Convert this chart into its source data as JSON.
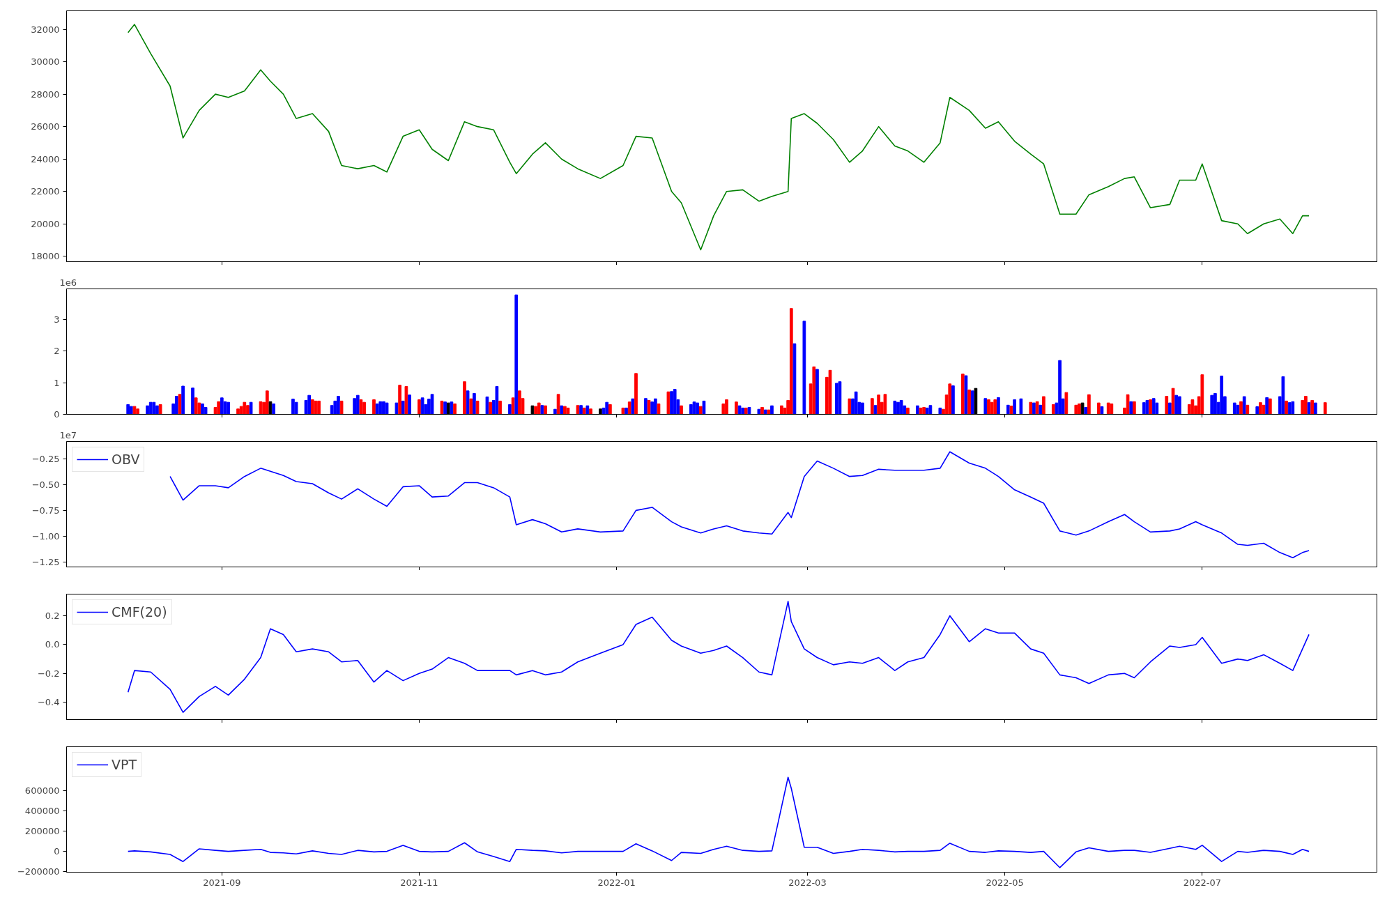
{
  "chart_data": [
    {
      "type": "line",
      "xlim": [
        "2021-07-15",
        "2022-08-24"
      ],
      "ylim": [
        17670,
        33140
      ],
      "xticks": [
        "2021-09",
        "2021-11",
        "2022-01",
        "2022-03",
        "2022-05",
        "2022-07"
      ],
      "yticks": [
        18000,
        20000,
        22000,
        24000,
        26000,
        28000,
        30000,
        32000
      ],
      "tick_labels": "y",
      "x": [
        "2021-08-03",
        "2021-08-05",
        "2021-08-10",
        "2021-08-16",
        "2021-08-20",
        "2021-08-25",
        "2021-08-30",
        "2021-09-03",
        "2021-09-08",
        "2021-09-13",
        "2021-09-16",
        "2021-09-20",
        "2021-09-24",
        "2021-09-29",
        "2021-10-04",
        "2021-10-08",
        "2021-10-13",
        "2021-10-18",
        "2021-10-22",
        "2021-10-27",
        "2021-11-01",
        "2021-11-05",
        "2021-11-10",
        "2021-11-15",
        "2021-11-19",
        "2021-11-24",
        "2021-11-29",
        "2021-12-01",
        "2021-12-06",
        "2021-12-10",
        "2021-12-15",
        "2021-12-20",
        "2021-12-27",
        "2022-01-03",
        "2022-01-07",
        "2022-01-12",
        "2022-01-18",
        "2022-01-21",
        "2022-01-27",
        "2022-01-31",
        "2022-02-04",
        "2022-02-09",
        "2022-02-14",
        "2022-02-18",
        "2022-02-23",
        "2022-02-24",
        "2022-02-28",
        "2022-03-04",
        "2022-03-09",
        "2022-03-14",
        "2022-03-18",
        "2022-03-23",
        "2022-03-28",
        "2022-04-01",
        "2022-04-06",
        "2022-04-11",
        "2022-04-14",
        "2022-04-20",
        "2022-04-25",
        "2022-04-29",
        "2022-05-04",
        "2022-05-09",
        "2022-05-13",
        "2022-05-18",
        "2022-05-23",
        "2022-05-27",
        "2022-06-02",
        "2022-06-07",
        "2022-06-10",
        "2022-06-15",
        "2022-06-21",
        "2022-06-24",
        "2022-06-29",
        "2022-07-01",
        "2022-07-07",
        "2022-07-12",
        "2022-07-15",
        "2022-07-20",
        "2022-07-25",
        "2022-07-29",
        "2022-08-01",
        "2022-08-03"
      ],
      "series": [
        {
          "color": "#008000",
          "values": [
            31800,
            32300,
            30500,
            28500,
            25300,
            27000,
            28000,
            27800,
            28200,
            29500,
            28800,
            28000,
            26500,
            26800,
            25700,
            23600,
            23400,
            23600,
            23200,
            25400,
            25800,
            24600,
            23900,
            26300,
            26000,
            25800,
            23800,
            23100,
            24300,
            25000,
            24000,
            23400,
            22800,
            23600,
            25400,
            25300,
            22000,
            21300,
            18400,
            20500,
            22000,
            22100,
            21400,
            21700,
            22000,
            26500,
            26800,
            26200,
            25200,
            23800,
            24500,
            26000,
            24800,
            24500,
            23800,
            25000,
            27800,
            27000,
            25900,
            26300,
            25100,
            24300,
            23700,
            20600,
            20600,
            21800,
            22300,
            22800,
            22900,
            21000,
            21200,
            22700,
            22700,
            23700,
            20200,
            20000,
            19400,
            20000,
            20300,
            19400,
            20500,
            20500
          ]
        }
      ]
    },
    {
      "type": "bar",
      "annotations": [
        "1e6"
      ],
      "xlim": [
        "2021-07-15",
        "2022-08-24"
      ],
      "ylim": [
        0,
        3.96
      ],
      "xticks": [
        "2021-09",
        "2021-11",
        "2022-01",
        "2022-03",
        "2022-05",
        "2022-07"
      ],
      "yticks": [
        0,
        1,
        2,
        3
      ],
      "tick_labels": "y",
      "x": [
        "2021-08-03",
        "2021-08-04",
        "2021-08-05",
        "2021-08-06",
        "2021-08-09",
        "2021-08-10",
        "2021-08-11",
        "2021-08-12",
        "2021-08-13",
        "2021-08-17",
        "2021-08-18",
        "2021-08-19",
        "2021-08-20",
        "2021-08-23",
        "2021-08-24",
        "2021-08-25",
        "2021-08-26",
        "2021-08-27",
        "2021-08-30",
        "2021-08-31",
        "2021-09-01",
        "2021-09-02",
        "2021-09-03",
        "2021-09-06",
        "2021-09-07",
        "2021-09-08",
        "2021-09-09",
        "2021-09-10",
        "2021-09-13",
        "2021-09-14",
        "2021-09-15",
        "2021-09-16",
        "2021-09-17",
        "2021-09-23",
        "2021-09-24",
        "2021-09-27",
        "2021-09-28",
        "2021-09-29",
        "2021-09-30",
        "2021-10-01",
        "2021-10-05",
        "2021-10-06",
        "2021-10-07",
        "2021-10-08",
        "2021-10-12",
        "2021-10-13",
        "2021-10-14",
        "2021-10-15",
        "2021-10-18",
        "2021-10-19",
        "2021-10-20",
        "2021-10-21",
        "2021-10-22",
        "2021-10-25",
        "2021-10-26",
        "2021-10-27",
        "2021-10-28",
        "2021-10-29",
        "2021-11-01",
        "2021-11-02",
        "2021-11-03",
        "2021-11-04",
        "2021-11-05",
        "2021-11-08",
        "2021-11-09",
        "2021-11-10",
        "2021-11-11",
        "2021-11-12",
        "2021-11-15",
        "2021-11-16",
        "2021-11-17",
        "2021-11-18",
        "2021-11-19",
        "2021-11-22",
        "2021-11-23",
        "2021-11-24",
        "2021-11-25",
        "2021-11-26",
        "2021-11-29",
        "2021-11-30",
        "2021-12-01",
        "2021-12-02",
        "2021-12-03",
        "2021-12-06",
        "2021-12-07",
        "2021-12-08",
        "2021-12-09",
        "2021-12-10",
        "2021-12-13",
        "2021-12-14",
        "2021-12-15",
        "2021-12-16",
        "2021-12-17",
        "2021-12-20",
        "2021-12-21",
        "2021-12-22",
        "2021-12-23",
        "2021-12-24",
        "2021-12-27",
        "2021-12-28",
        "2021-12-29",
        "2021-12-30",
        "2022-01-03",
        "2022-01-04",
        "2022-01-05",
        "2022-01-06",
        "2022-01-07",
        "2022-01-10",
        "2022-01-11",
        "2022-01-12",
        "2022-01-13",
        "2022-01-14",
        "2022-01-17",
        "2022-01-18",
        "2022-01-19",
        "2022-01-20",
        "2022-01-21",
        "2022-01-24",
        "2022-01-25",
        "2022-01-26",
        "2022-01-27",
        "2022-01-28",
        "2022-02-03",
        "2022-02-04",
        "2022-02-07",
        "2022-02-08",
        "2022-02-09",
        "2022-02-10",
        "2022-02-11",
        "2022-02-14",
        "2022-02-15",
        "2022-02-16",
        "2022-02-17",
        "2022-02-18",
        "2022-02-21",
        "2022-02-22",
        "2022-02-23",
        "2022-02-24",
        "2022-02-25",
        "2022-02-28",
        "2022-03-02",
        "2022-03-03",
        "2022-03-04",
        "2022-03-07",
        "2022-03-08",
        "2022-03-10",
        "2022-03-11",
        "2022-03-14",
        "2022-03-15",
        "2022-03-16",
        "2022-03-17",
        "2022-03-18",
        "2022-03-21",
        "2022-03-22",
        "2022-03-23",
        "2022-03-24",
        "2022-03-25",
        "2022-03-28",
        "2022-03-29",
        "2022-03-30",
        "2022-03-31",
        "2022-04-01",
        "2022-04-04",
        "2022-04-05",
        "2022-04-06",
        "2022-04-07",
        "2022-04-08",
        "2022-04-11",
        "2022-04-12",
        "2022-04-13",
        "2022-04-14",
        "2022-04-15",
        "2022-04-18",
        "2022-04-19",
        "2022-04-20",
        "2022-04-21",
        "2022-04-22",
        "2022-04-25",
        "2022-04-26",
        "2022-04-27",
        "2022-04-28",
        "2022-04-29",
        "2022-05-02",
        "2022-05-03",
        "2022-05-04",
        "2022-05-06",
        "2022-05-09",
        "2022-05-10",
        "2022-05-11",
        "2022-05-12",
        "2022-05-13",
        "2022-05-16",
        "2022-05-17",
        "2022-05-18",
        "2022-05-19",
        "2022-05-20",
        "2022-05-23",
        "2022-05-24",
        "2022-05-25",
        "2022-05-26",
        "2022-05-27",
        "2022-05-30",
        "2022-05-31",
        "2022-06-02",
        "2022-06-03",
        "2022-06-07",
        "2022-06-08",
        "2022-06-09",
        "2022-06-10",
        "2022-06-13",
        "2022-06-14",
        "2022-06-15",
        "2022-06-16",
        "2022-06-17",
        "2022-06-20",
        "2022-06-21",
        "2022-06-22",
        "2022-06-23",
        "2022-06-24",
        "2022-06-27",
        "2022-06-28",
        "2022-06-29",
        "2022-06-30",
        "2022-07-01",
        "2022-07-04",
        "2022-07-05",
        "2022-07-06",
        "2022-07-07",
        "2022-07-08",
        "2022-07-11",
        "2022-07-12",
        "2022-07-13",
        "2022-07-14",
        "2022-07-15",
        "2022-07-18",
        "2022-07-19",
        "2022-07-20",
        "2022-07-21",
        "2022-07-22",
        "2022-07-25",
        "2022-07-26",
        "2022-07-27",
        "2022-07-28",
        "2022-07-29",
        "2022-08-01",
        "2022-08-02",
        "2022-08-03",
        "2022-08-04",
        "2022-08-05",
        "2022-08-08"
      ],
      "series": [
        {
          "values": [
            0.31,
            0.25,
            0.25,
            0.17,
            0.27,
            0.38,
            0.38,
            0.27,
            0.31,
            0.33,
            0.57,
            0.63,
            0.89,
            0.83,
            0.52,
            0.36,
            0.33,
            0.22,
            0.22,
            0.4,
            0.52,
            0.4,
            0.38,
            0.17,
            0.25,
            0.38,
            0.28,
            0.38,
            0.4,
            0.38,
            0.74,
            0.4,
            0.33,
            0.48,
            0.38,
            0.44,
            0.6,
            0.46,
            0.42,
            0.42,
            0.28,
            0.42,
            0.57,
            0.42,
            0.5,
            0.6,
            0.46,
            0.38,
            0.46,
            0.33,
            0.4,
            0.4,
            0.36,
            0.36,
            0.92,
            0.42,
            0.88,
            0.61,
            0.46,
            0.52,
            0.31,
            0.48,
            0.63,
            0.42,
            0.39,
            0.36,
            0.39,
            0.33,
            1.03,
            0.74,
            0.49,
            0.66,
            0.42,
            0.55,
            0.38,
            0.44,
            0.88,
            0.42,
            0.31,
            0.52,
            3.77,
            0.74,
            0.5,
            0.27,
            0.25,
            0.36,
            0.28,
            0.27,
            0.16,
            0.63,
            0.27,
            0.25,
            0.2,
            0.28,
            0.28,
            0.2,
            0.27,
            0.17,
            0.17,
            0.2,
            0.38,
            0.31,
            0.2,
            0.2,
            0.39,
            0.49,
            1.29,
            0.5,
            0.44,
            0.39,
            0.49,
            0.33,
            0.71,
            0.72,
            0.79,
            0.46,
            0.27,
            0.31,
            0.39,
            0.36,
            0.25,
            0.42,
            0.33,
            0.46,
            0.39,
            0.27,
            0.2,
            0.2,
            0.22,
            0.16,
            0.22,
            0.14,
            0.14,
            0.27,
            0.27,
            0.2,
            0.44,
            3.34,
            2.23,
            2.94,
            0.96,
            1.5,
            1.42,
            1.17,
            1.39,
            0.98,
            1.03,
            0.49,
            0.49,
            0.71,
            0.38,
            0.36,
            0.5,
            0.28,
            0.61,
            0.38,
            0.63,
            0.42,
            0.38,
            0.44,
            0.27,
            0.2,
            0.27,
            0.2,
            0.22,
            0.2,
            0.28,
            0.2,
            0.16,
            0.61,
            0.96,
            0.9,
            1.27,
            1.22,
            0.77,
            0.74,
            0.82,
            0.5,
            0.46,
            0.38,
            0.46,
            0.53,
            0.29,
            0.26,
            0.46,
            0.49,
            0.38,
            0.36,
            0.4,
            0.29,
            0.56,
            0.31,
            0.36,
            1.7,
            0.49,
            0.69,
            0.29,
            0.33,
            0.36,
            0.22,
            0.62,
            0.36,
            0.24,
            0.36,
            0.33,
            0.2,
            0.62,
            0.4,
            0.4,
            0.37,
            0.44,
            0.46,
            0.5,
            0.36,
            0.57,
            0.36,
            0.82,
            0.6,
            0.56,
            0.31,
            0.46,
            0.27,
            0.56,
            1.25,
            0.6,
            0.66,
            0.38,
            1.21,
            0.56,
            0.36,
            0.29,
            0.4,
            0.56,
            0.29,
            0.24,
            0.37,
            0.29,
            0.53,
            0.49,
            0.56,
            1.19,
            0.42,
            0.37,
            0.4,
            0.44,
            0.57,
            0.37,
            0.44,
            0.36,
            0.37
          ],
          "colors": [
            "#0000ff",
            "#0000ff",
            "#ff0000",
            "#ff0000",
            "#0000ff",
            "#0000ff",
            "#0000ff",
            "#0000ff",
            "#ff0000",
            "#0000ff",
            "#0000ff",
            "#ff0000",
            "#0000ff",
            "#0000ff",
            "#ff0000",
            "#ff0000",
            "#0000ff",
            "#0000ff",
            "#ff0000",
            "#ff0000",
            "#0000ff",
            "#0000ff",
            "#0000ff",
            "#ff0000",
            "#ff0000",
            "#ff0000",
            "#ff0000",
            "#0000ff",
            "#ff0000",
            "#ff0000",
            "#ff0000",
            "#000000",
            "#0000ff",
            "#0000ff",
            "#0000ff",
            "#0000ff",
            "#0000ff",
            "#ff0000",
            "#ff0000",
            "#ff0000",
            "#0000ff",
            "#0000ff",
            "#0000ff",
            "#ff0000",
            "#0000ff",
            "#0000ff",
            "#ff0000",
            "#ff0000",
            "#ff0000",
            "#0000ff",
            "#0000ff",
            "#0000ff",
            "#0000ff",
            "#0000ff",
            "#ff0000",
            "#0000ff",
            "#ff0000",
            "#0000ff",
            "#ff0000",
            "#0000ff",
            "#0000ff",
            "#0000ff",
            "#0000ff",
            "#ff0000",
            "#0000ff",
            "#000000",
            "#0000ff",
            "#ff0000",
            "#ff0000",
            "#0000ff",
            "#ff0000",
            "#0000ff",
            "#ff0000",
            "#0000ff",
            "#ff0000",
            "#0000ff",
            "#0000ff",
            "#ff0000",
            "#0000ff",
            "#ff0000",
            "#0000ff",
            "#ff0000",
            "#ff0000",
            "#000000",
            "#ff0000",
            "#ff0000",
            "#0000ff",
            "#ff0000",
            "#0000ff",
            "#ff0000",
            "#0000ff",
            "#ff0000",
            "#ff0000",
            "#ff0000",
            "#0000ff",
            "#ff0000",
            "#0000ff",
            "#ff0000",
            "#000000",
            "#0000ff",
            "#0000ff",
            "#ff0000",
            "#ff0000",
            "#0000ff",
            "#ff0000",
            "#0000ff",
            "#ff0000",
            "#0000ff",
            "#ff0000",
            "#0000ff",
            "#0000ff",
            "#ff0000",
            "#ff0000",
            "#0000ff",
            "#0000ff",
            "#0000ff",
            "#ff0000",
            "#0000ff",
            "#0000ff",
            "#0000ff",
            "#ff0000",
            "#0000ff",
            "#ff0000",
            "#ff0000",
            "#ff0000",
            "#0000ff",
            "#0000ff",
            "#ff0000",
            "#0000ff",
            "#0000ff",
            "#ff0000",
            "#0000ff",
            "#ff0000",
            "#0000ff",
            "#ff0000",
            "#ff0000",
            "#ff0000",
            "#ff0000",
            "#0000ff",
            "#0000ff",
            "#ff0000",
            "#ff0000",
            "#0000ff",
            "#ff0000",
            "#ff0000",
            "#0000ff",
            "#0000ff",
            "#ff0000",
            "#0000ff",
            "#0000ff",
            "#0000ff",
            "#0000ff",
            "#ff0000",
            "#0000ff",
            "#ff0000",
            "#ff0000",
            "#ff0000",
            "#0000ff",
            "#0000ff",
            "#0000ff",
            "#0000ff",
            "#ff0000",
            "#0000ff",
            "#ff0000",
            "#ff0000",
            "#0000ff",
            "#0000ff",
            "#0000ff",
            "#ff0000",
            "#ff0000",
            "#ff0000",
            "#0000ff",
            "#ff0000",
            "#0000ff",
            "#ff0000",
            "#0000ff",
            "#000000",
            "#0000ff",
            "#ff0000",
            "#ff0000",
            "#ff0000",
            "#0000ff",
            "#0000ff",
            "#ff0000",
            "#0000ff",
            "#0000ff",
            "#ff0000",
            "#0000ff",
            "#ff0000",
            "#0000ff",
            "#ff0000",
            "#ff0000",
            "#0000ff",
            "#0000ff",
            "#0000ff",
            "#ff0000",
            "#ff0000",
            "#ff0000",
            "#000000",
            "#0000ff",
            "#ff0000",
            "#ff0000",
            "#0000ff",
            "#ff0000",
            "#ff0000",
            "#ff0000",
            "#ff0000",
            "#0000ff",
            "#ff0000",
            "#0000ff",
            "#0000ff",
            "#ff0000",
            "#0000ff",
            "#0000ff",
            "#ff0000",
            "#0000ff",
            "#ff0000",
            "#0000ff",
            "#0000ff",
            "#ff0000",
            "#ff0000",
            "#ff0000",
            "#ff0000",
            "#ff0000",
            "#0000ff",
            "#0000ff",
            "#0000ff",
            "#0000ff",
            "#0000ff",
            "#0000ff",
            "#0000ff",
            "#ff0000",
            "#0000ff",
            "#ff0000",
            "#0000ff",
            "#ff0000",
            "#ff0000",
            "#0000ff",
            "#ff0000",
            "#0000ff",
            "#0000ff",
            "#ff0000",
            "#0000ff",
            "#0000ff",
            "#ff0000",
            "#ff0000",
            "#0000ff",
            "#ff0000",
            "#0000ff",
            "#ff0000"
          ]
        }
      ]
    },
    {
      "type": "line",
      "annotations": [
        "1e7"
      ],
      "legend": "top left",
      "xlim": [
        "2021-07-15",
        "2022-08-24"
      ],
      "ylim": [
        -1.3,
        -0.08
      ],
      "xticks": [
        "2021-09",
        "2021-11",
        "2022-01",
        "2022-03",
        "2022-05",
        "2022-07"
      ],
      "yticks": [
        {
          "value": -1.25,
          "label": "−1.25"
        },
        {
          "value": -1.0,
          "label": "−1.00"
        },
        {
          "value": -0.75,
          "label": "−0.75"
        },
        {
          "value": -0.5,
          "label": "−0.50"
        },
        {
          "value": -0.25,
          "label": "−0.25"
        }
      ],
      "tick_labels": "y",
      "x": [
        "2021-08-16",
        "2021-08-20",
        "2021-08-25",
        "2021-08-30",
        "2021-09-03",
        "2021-09-08",
        "2021-09-13",
        "2021-09-16",
        "2021-09-20",
        "2021-09-24",
        "2021-09-29",
        "2021-10-04",
        "2021-10-08",
        "2021-10-13",
        "2021-10-18",
        "2021-10-22",
        "2021-10-27",
        "2021-11-01",
        "2021-11-05",
        "2021-11-10",
        "2021-11-15",
        "2021-11-19",
        "2021-11-24",
        "2021-11-29",
        "2021-12-01",
        "2021-12-06",
        "2021-12-10",
        "2021-12-15",
        "2021-12-20",
        "2021-12-27",
        "2022-01-03",
        "2022-01-07",
        "2022-01-12",
        "2022-01-18",
        "2022-01-21",
        "2022-01-27",
        "2022-01-31",
        "2022-02-04",
        "2022-02-09",
        "2022-02-14",
        "2022-02-18",
        "2022-02-23",
        "2022-02-24",
        "2022-02-28",
        "2022-03-04",
        "2022-03-09",
        "2022-03-14",
        "2022-03-18",
        "2022-03-23",
        "2022-03-28",
        "2022-04-01",
        "2022-04-06",
        "2022-04-11",
        "2022-04-14",
        "2022-04-20",
        "2022-04-25",
        "2022-04-29",
        "2022-05-04",
        "2022-05-09",
        "2022-05-13",
        "2022-05-18",
        "2022-05-23",
        "2022-05-27",
        "2022-06-02",
        "2022-06-07",
        "2022-06-10",
        "2022-06-15",
        "2022-06-21",
        "2022-06-24",
        "2022-06-29",
        "2022-07-01",
        "2022-07-07",
        "2022-07-12",
        "2022-07-15",
        "2022-07-20",
        "2022-07-25",
        "2022-07-29",
        "2022-08-01",
        "2022-08-03"
      ],
      "series": [
        {
          "name": "OBV",
          "color": "#0000ff",
          "values": [
            -0.42,
            -0.65,
            -0.51,
            -0.51,
            -0.53,
            -0.42,
            -0.34,
            -0.37,
            -0.41,
            -0.47,
            -0.49,
            -0.58,
            -0.64,
            -0.54,
            -0.64,
            -0.71,
            -0.52,
            -0.51,
            -0.62,
            -0.61,
            -0.48,
            -0.48,
            -0.53,
            -0.62,
            -0.89,
            -0.84,
            -0.88,
            -0.96,
            -0.93,
            -0.96,
            -0.95,
            -0.75,
            -0.72,
            -0.86,
            -0.91,
            -0.97,
            -0.93,
            -0.9,
            -0.95,
            -0.97,
            -0.98,
            -0.77,
            -0.82,
            -0.42,
            -0.27,
            -0.34,
            -0.42,
            -0.41,
            -0.35,
            -0.36,
            -0.36,
            -0.36,
            -0.34,
            -0.18,
            -0.29,
            -0.34,
            -0.42,
            -0.55,
            -0.62,
            -0.68,
            -0.95,
            -0.99,
            -0.95,
            -0.86,
            -0.79,
            -0.86,
            -0.96,
            -0.95,
            -0.93,
            -0.86,
            -0.89,
            -0.97,
            -1.08,
            -1.09,
            -1.07,
            -1.16,
            -1.21,
            -1.16,
            -1.14
          ]
        }
      ]
    },
    {
      "type": "line",
      "legend": "top left",
      "xlim": [
        "2021-07-15",
        "2022-08-24"
      ],
      "ylim": [
        -0.52,
        0.35
      ],
      "xticks": [
        "2021-09",
        "2021-11",
        "2022-01",
        "2022-03",
        "2022-05",
        "2022-07"
      ],
      "yticks": [
        {
          "value": -0.4,
          "label": "−0.4"
        },
        {
          "value": -0.2,
          "label": "−0.2"
        },
        {
          "value": 0,
          "label": "0.0"
        },
        {
          "value": 0.2,
          "label": "0.2"
        }
      ],
      "tick_labels": "y",
      "x": [
        "2021-08-03",
        "2021-08-05",
        "2021-08-10",
        "2021-08-16",
        "2021-08-20",
        "2021-08-25",
        "2021-08-30",
        "2021-09-03",
        "2021-09-08",
        "2021-09-13",
        "2021-09-16",
        "2021-09-20",
        "2021-09-24",
        "2021-09-29",
        "2021-10-04",
        "2021-10-08",
        "2021-10-13",
        "2021-10-18",
        "2021-10-22",
        "2021-10-27",
        "2021-11-01",
        "2021-11-05",
        "2021-11-10",
        "2021-11-15",
        "2021-11-19",
        "2021-11-24",
        "2021-11-29",
        "2021-12-01",
        "2021-12-06",
        "2021-12-10",
        "2021-12-15",
        "2021-12-20",
        "2021-12-27",
        "2022-01-03",
        "2022-01-07",
        "2022-01-12",
        "2022-01-18",
        "2022-01-21",
        "2022-01-27",
        "2022-01-31",
        "2022-02-04",
        "2022-02-09",
        "2022-02-14",
        "2022-02-18",
        "2022-02-23",
        "2022-02-24",
        "2022-02-28",
        "2022-03-04",
        "2022-03-09",
        "2022-03-14",
        "2022-03-18",
        "2022-03-23",
        "2022-03-28",
        "2022-04-01",
        "2022-04-06",
        "2022-04-11",
        "2022-04-14",
        "2022-04-20",
        "2022-04-25",
        "2022-04-29",
        "2022-05-04",
        "2022-05-09",
        "2022-05-13",
        "2022-05-18",
        "2022-05-23",
        "2022-05-27",
        "2022-06-02",
        "2022-06-07",
        "2022-06-10",
        "2022-06-15",
        "2022-06-21",
        "2022-06-24",
        "2022-06-29",
        "2022-07-01",
        "2022-07-07",
        "2022-07-12",
        "2022-07-15",
        "2022-07-20",
        "2022-07-25",
        "2022-07-29",
        "2022-08-01",
        "2022-08-03"
      ],
      "series": [
        {
          "name": "CMF(20)",
          "color": "#0000ff",
          "values": [
            -0.33,
            -0.18,
            -0.19,
            -0.31,
            -0.47,
            -0.36,
            -0.29,
            -0.35,
            -0.24,
            -0.09,
            0.11,
            0.07,
            -0.05,
            -0.03,
            -0.05,
            -0.12,
            -0.11,
            -0.26,
            -0.18,
            -0.25,
            -0.2,
            -0.17,
            -0.09,
            -0.13,
            -0.18,
            -0.18,
            -0.18,
            -0.21,
            -0.18,
            -0.21,
            -0.19,
            -0.12,
            -0.06,
            0.0,
            0.14,
            0.19,
            0.03,
            -0.01,
            -0.06,
            -0.04,
            -0.01,
            -0.09,
            -0.19,
            -0.21,
            0.3,
            0.16,
            -0.03,
            -0.09,
            -0.14,
            -0.12,
            -0.13,
            -0.09,
            -0.18,
            -0.12,
            -0.09,
            0.07,
            0.2,
            0.02,
            0.11,
            0.08,
            0.08,
            -0.03,
            -0.06,
            -0.21,
            -0.23,
            -0.27,
            -0.21,
            -0.2,
            -0.23,
            -0.12,
            -0.01,
            -0.02,
            0.0,
            0.05,
            -0.13,
            -0.1,
            -0.11,
            -0.07,
            -0.13,
            -0.18,
            -0.03,
            0.07
          ]
        }
      ]
    },
    {
      "type": "line",
      "legend": "top left",
      "xlim": [
        "2021-07-15",
        "2022-08-24"
      ],
      "ylim": [
        -205000,
        1030000
      ],
      "xticks": [
        "2021-09",
        "2021-11",
        "2022-01",
        "2022-03",
        "2022-05",
        "2022-07"
      ],
      "yticks": [
        {
          "value": -200000,
          "label": "−200000"
        },
        0,
        200000,
        400000,
        600000
      ],
      "x": [
        "2021-08-03",
        "2021-08-05",
        "2021-08-10",
        "2021-08-16",
        "2021-08-20",
        "2021-08-25",
        "2021-08-30",
        "2021-09-03",
        "2021-09-08",
        "2021-09-13",
        "2021-09-16",
        "2021-09-20",
        "2021-09-24",
        "2021-09-29",
        "2021-10-04",
        "2021-10-08",
        "2021-10-13",
        "2021-10-18",
        "2021-10-22",
        "2021-10-27",
        "2021-11-01",
        "2021-11-05",
        "2021-11-10",
        "2021-11-15",
        "2021-11-19",
        "2021-11-24",
        "2021-11-29",
        "2021-12-01",
        "2021-12-06",
        "2021-12-10",
        "2021-12-15",
        "2021-12-20",
        "2021-12-27",
        "2022-01-03",
        "2022-01-07",
        "2022-01-12",
        "2022-01-18",
        "2022-01-21",
        "2022-01-27",
        "2022-01-31",
        "2022-02-04",
        "2022-02-09",
        "2022-02-14",
        "2022-02-18",
        "2022-02-23",
        "2022-02-24",
        "2022-02-28",
        "2022-03-04",
        "2022-03-09",
        "2022-03-14",
        "2022-03-18",
        "2022-03-23",
        "2022-03-28",
        "2022-04-01",
        "2022-04-06",
        "2022-04-11",
        "2022-04-14",
        "2022-04-20",
        "2022-04-25",
        "2022-04-29",
        "2022-05-04",
        "2022-05-09",
        "2022-05-13",
        "2022-05-18",
        "2022-05-23",
        "2022-05-27",
        "2022-06-02",
        "2022-06-07",
        "2022-06-10",
        "2022-06-15",
        "2022-06-21",
        "2022-06-24",
        "2022-06-29",
        "2022-07-01",
        "2022-07-07",
        "2022-07-12",
        "2022-07-15",
        "2022-07-20",
        "2022-07-25",
        "2022-07-29",
        "2022-08-01",
        "2022-08-03"
      ],
      "series": [
        {
          "name": "VPT",
          "color": "#0000ff",
          "values": [
            0,
            5000,
            -5000,
            -30000,
            -100000,
            25000,
            10000,
            0,
            10000,
            20000,
            -10000,
            -15000,
            -25000,
            5000,
            -20000,
            -30000,
            10000,
            -5000,
            0,
            60000,
            0,
            -5000,
            0,
            85000,
            -5000,
            -50000,
            -100000,
            20000,
            10000,
            5000,
            -15000,
            0,
            0,
            0,
            75000,
            5000,
            -90000,
            -10000,
            -20000,
            20000,
            50000,
            10000,
            0,
            5000,
            730000,
            620000,
            40000,
            40000,
            -20000,
            0,
            20000,
            10000,
            -5000,
            0,
            0,
            10000,
            80000,
            0,
            -10000,
            5000,
            0,
            -10000,
            0,
            -160000,
            -5000,
            35000,
            0,
            10000,
            10000,
            -10000,
            30000,
            50000,
            20000,
            60000,
            -100000,
            0,
            -10000,
            10000,
            0,
            -30000,
            20000,
            0
          ]
        }
      ]
    }
  ]
}
